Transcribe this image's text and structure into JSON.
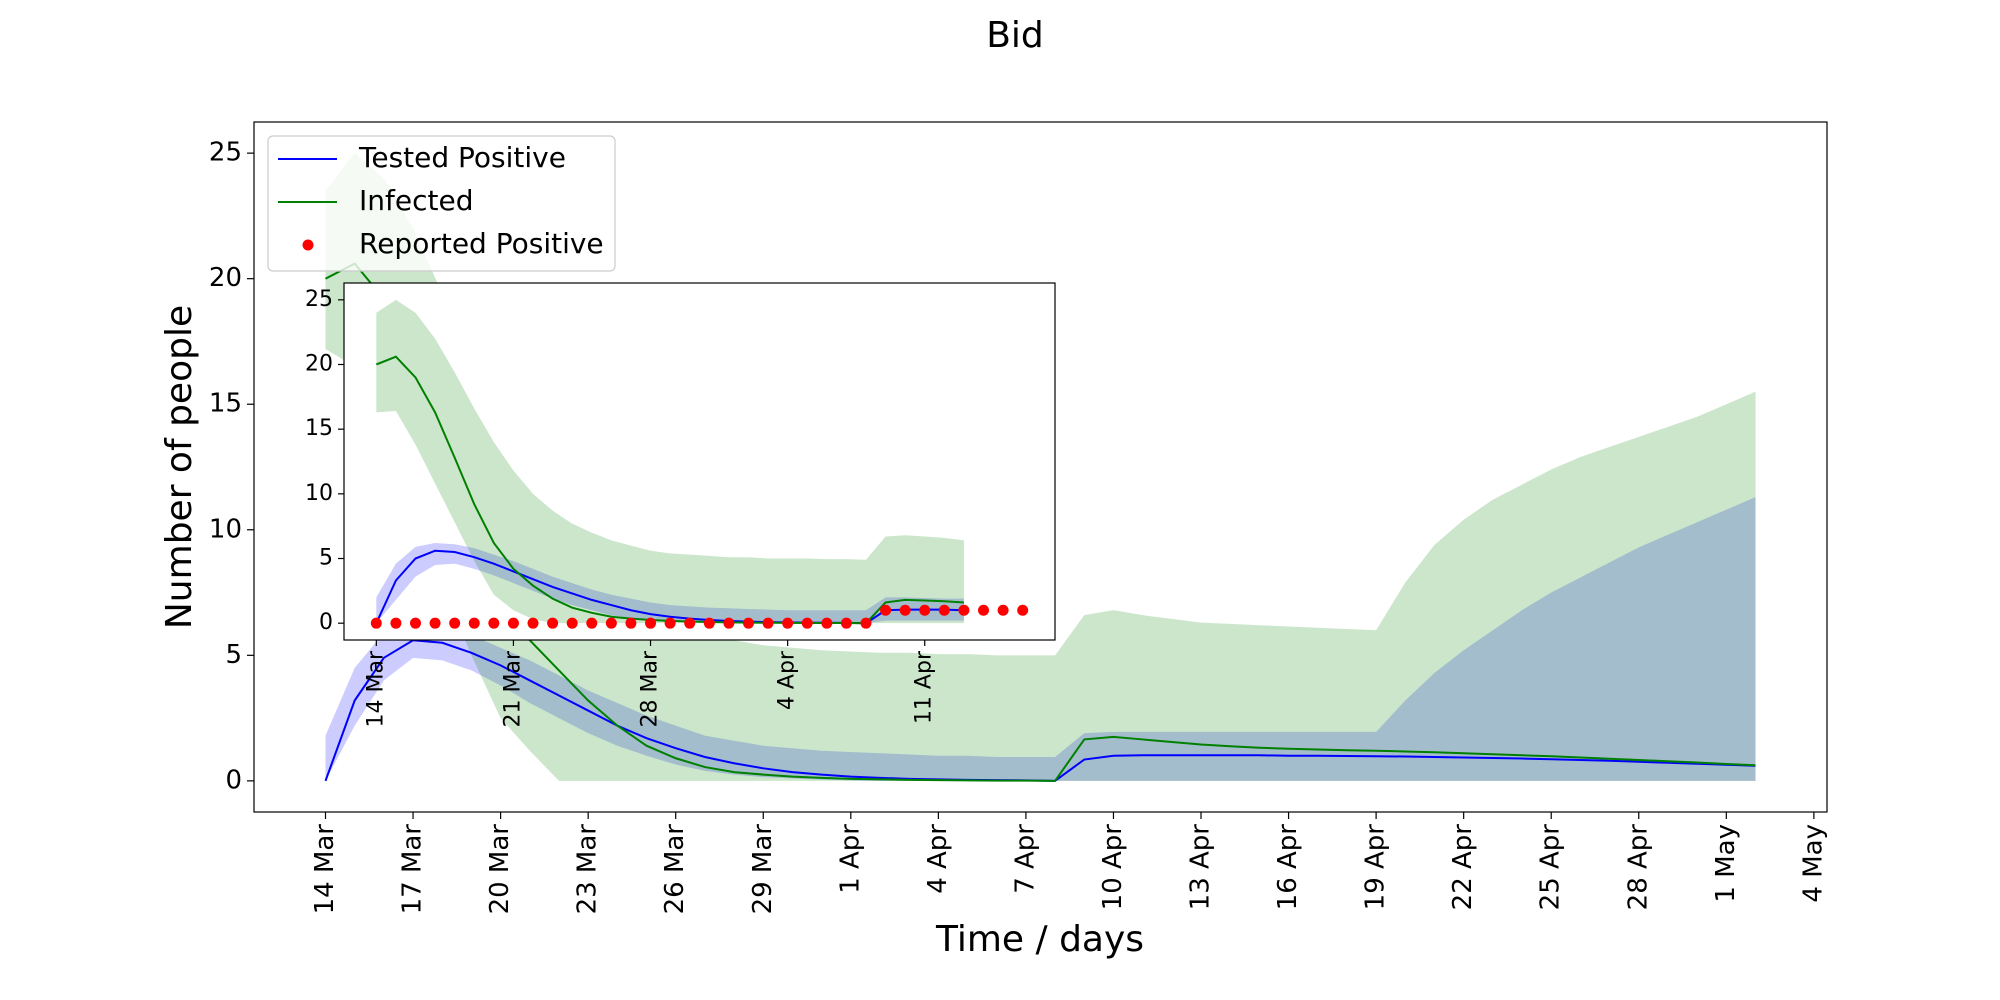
{
  "chart_data": [
    {
      "type": "line",
      "title": "Bid",
      "xlabel": "Time / days",
      "ylabel": "Number of people",
      "legend": "upper left",
      "band_alpha": 0.2,
      "x": [
        "14 Mar",
        "15 Mar",
        "16 Mar",
        "17 Mar",
        "18 Mar",
        "19 Mar",
        "20 Mar",
        "21 Mar",
        "22 Mar",
        "23 Mar",
        "24 Mar",
        "25 Mar",
        "26 Mar",
        "27 Mar",
        "28 Mar",
        "29 Mar",
        "30 Mar",
        "31 Mar",
        "1 Apr",
        "2 Apr",
        "3 Apr",
        "4 Apr",
        "5 Apr",
        "6 Apr",
        "7 Apr",
        "8 Apr",
        "9 Apr",
        "10 Apr",
        "11 Apr",
        "12 Apr",
        "13 Apr",
        "14 Apr",
        "15 Apr",
        "16 Apr",
        "17 Apr",
        "18 Apr",
        "19 Apr",
        "20 Apr",
        "21 Apr",
        "22 Apr",
        "23 Apr",
        "24 Apr",
        "25 Apr",
        "26 Apr",
        "27 Apr",
        "28 Apr",
        "29 Apr",
        "30 Apr",
        "1 May",
        "2 May"
      ],
      "xticks": [
        "14 Mar",
        "17 Mar",
        "20 Mar",
        "23 Mar",
        "26 Mar",
        "29 Mar",
        "1 Apr",
        "4 Apr",
        "7 Apr",
        "10 Apr",
        "13 Apr",
        "16 Apr",
        "19 Apr",
        "22 Apr",
        "25 Apr",
        "28 Apr",
        "1 May",
        "4 May"
      ],
      "ylim": [
        -1.24,
        26.24
      ],
      "yticks": [
        0,
        5,
        10,
        15,
        20,
        25
      ],
      "series": [
        {
          "name": "Tested Positive",
          "color": "blue",
          "values": [
            0,
            3.2,
            4.9,
            5.6,
            5.5,
            5.1,
            4.6,
            4.0,
            3.4,
            2.8,
            2.2,
            1.7,
            1.3,
            0.95,
            0.7,
            0.5,
            0.35,
            0.25,
            0.17,
            0.12,
            0.08,
            0.06,
            0.04,
            0.03,
            0.02,
            0,
            0.85,
            1.0,
            1.02,
            1.02,
            1.02,
            1.02,
            1.02,
            1.0,
            1.0,
            0.99,
            0.98,
            0.97,
            0.95,
            0.93,
            0.91,
            0.89,
            0.86,
            0.83,
            0.8,
            0.76,
            0.72,
            0.68,
            0.64,
            0.6
          ],
          "upper": [
            1.8,
            4.5,
            5.9,
            6.2,
            6.1,
            5.8,
            5.3,
            4.8,
            4.2,
            3.6,
            3.1,
            2.6,
            2.2,
            1.8,
            1.6,
            1.4,
            1.3,
            1.2,
            1.15,
            1.1,
            1.05,
            1.0,
            1.0,
            0.95,
            0.95,
            0.95,
            1.9,
            1.95,
            1.95,
            1.95,
            1.95,
            1.95,
            1.95,
            1.95,
            1.95,
            1.95,
            1.95,
            3.2,
            4.3,
            5.2,
            6.0,
            6.8,
            7.5,
            8.1,
            8.7,
            9.3,
            9.8,
            10.3,
            10.8,
            11.3
          ],
          "lower": [
            0,
            2.2,
            4.0,
            4.9,
            4.8,
            4.4,
            3.8,
            3.1,
            2.5,
            1.9,
            1.4,
            1.0,
            0.65,
            0.4,
            0.25,
            0.15,
            0.1,
            0.05,
            0.02,
            0,
            0,
            0,
            0,
            0,
            0,
            0,
            0,
            0,
            0,
            0,
            0,
            0,
            0,
            0,
            0,
            0,
            0,
            0,
            0,
            0,
            0,
            0,
            0,
            0,
            0,
            0,
            0,
            0,
            0,
            0
          ]
        },
        {
          "name": "Infected",
          "color": "green",
          "values": [
            20,
            20.6,
            19.2,
            16.5,
            13,
            9.8,
            7.2,
            5.6,
            4.4,
            3.2,
            2.2,
            1.4,
            0.9,
            0.55,
            0.35,
            0.25,
            0.17,
            0.12,
            0.08,
            0.06,
            0.04,
            0.03,
            0.02,
            0.01,
            0.01,
            0,
            1.65,
            1.75,
            1.65,
            1.55,
            1.45,
            1.38,
            1.32,
            1.28,
            1.25,
            1.22,
            1.2,
            1.17,
            1.14,
            1.1,
            1.06,
            1.02,
            0.98,
            0.93,
            0.88,
            0.83,
            0.78,
            0.73,
            0.67,
            0.62
          ],
          "upper": [
            23.5,
            25,
            24,
            22,
            19.4,
            16.6,
            14,
            11.8,
            10,
            8.6,
            7.6,
            6.9,
            6.3,
            5.9,
            5.6,
            5.4,
            5.3,
            5.2,
            5.15,
            5.1,
            5.1,
            5.05,
            5.05,
            5.0,
            5.0,
            5.0,
            6.6,
            6.8,
            6.6,
            6.45,
            6.3,
            6.25,
            6.2,
            6.15,
            6.1,
            6.05,
            6.0,
            7.9,
            9.4,
            10.4,
            11.2,
            11.8,
            12.4,
            12.9,
            13.3,
            13.7,
            14.1,
            14.5,
            15.0,
            15.5
          ],
          "lower": [
            17.2,
            16.5,
            13.8,
            10.8,
            7.8,
            5.0,
            2.5,
            1.2,
            0,
            0,
            0,
            0,
            0,
            0,
            0,
            0,
            0,
            0,
            0,
            0,
            0,
            0,
            0,
            0,
            0,
            0,
            0,
            0,
            0,
            0,
            0,
            0,
            0,
            0,
            0,
            0,
            0,
            0,
            0,
            0,
            0,
            0,
            0,
            0,
            0,
            0,
            0,
            0,
            0,
            0
          ]
        },
        {
          "name": "Reported Positive",
          "color": "red",
          "type": "scatter"
        }
      ]
    },
    {
      "type": "line",
      "band_alpha": 0.2,
      "x": [
        "14 Mar",
        "15 Mar",
        "16 Mar",
        "17 Mar",
        "18 Mar",
        "19 Mar",
        "20 Mar",
        "21 Mar",
        "22 Mar",
        "23 Mar",
        "24 Mar",
        "25 Mar",
        "26 Mar",
        "27 Mar",
        "28 Mar",
        "29 Mar",
        "30 Mar",
        "31 Mar",
        "1 Apr",
        "2 Apr",
        "3 Apr",
        "4 Apr",
        "5 Apr",
        "6 Apr",
        "7 Apr",
        "8 Apr",
        "9 Apr",
        "10 Apr",
        "11 Apr",
        "12 Apr",
        "13 Apr",
        "14 Apr",
        "15 Apr",
        "16 Apr"
      ],
      "xticks": [
        "14 Mar",
        "21 Mar",
        "28 Mar",
        "4 Apr",
        "11 Apr"
      ],
      "ylim": [
        -1.3,
        26.3
      ],
      "yticks": [
        0,
        5,
        10,
        15,
        20,
        25
      ],
      "series": [
        {
          "color": "blue",
          "values": [
            0,
            3.3,
            5.0,
            5.6,
            5.5,
            5.1,
            4.6,
            4.0,
            3.4,
            2.8,
            2.3,
            1.8,
            1.4,
            1.0,
            0.7,
            0.5,
            0.35,
            0.25,
            0.17,
            0.12,
            0.08,
            0.06,
            0.04,
            0.03,
            0.02,
            0,
            1.0,
            1.05,
            1.05,
            1.05,
            1.0,
            null,
            null,
            null
          ],
          "upper": [
            2.0,
            4.6,
            5.9,
            6.2,
            6.1,
            5.8,
            5.3,
            4.8,
            4.2,
            3.6,
            3.1,
            2.6,
            2.2,
            1.9,
            1.6,
            1.4,
            1.3,
            1.2,
            1.15,
            1.1,
            1.05,
            1.0,
            1.0,
            1.0,
            1.0,
            1.0,
            2.0,
            2.0,
            1.95,
            1.9,
            1.9,
            null,
            null,
            null
          ],
          "lower": [
            0,
            1.8,
            3.6,
            4.5,
            4.6,
            4.2,
            3.7,
            3.1,
            2.5,
            1.9,
            1.4,
            1.0,
            0.6,
            0.4,
            0.25,
            0.15,
            0.1,
            0.05,
            0.02,
            0,
            0,
            0,
            0,
            0,
            0,
            0,
            0.2,
            0.2,
            0.2,
            0.2,
            0.2,
            null,
            null,
            null
          ]
        },
        {
          "color": "green",
          "values": [
            20,
            20.6,
            19.0,
            16.3,
            12.8,
            9.2,
            6.2,
            4.2,
            2.9,
            1.9,
            1.2,
            0.8,
            0.5,
            0.35,
            0.25,
            0.18,
            0.13,
            0.09,
            0.06,
            0.04,
            0.03,
            0.02,
            0.01,
            0.01,
            0.01,
            0,
            1.6,
            1.8,
            1.75,
            1.7,
            1.6,
            null,
            null,
            null
          ],
          "upper": [
            24,
            25,
            24,
            22,
            19.4,
            16.6,
            14,
            11.8,
            10,
            8.7,
            7.7,
            7.0,
            6.4,
            6.0,
            5.6,
            5.4,
            5.3,
            5.2,
            5.1,
            5.1,
            5.0,
            5.0,
            5.0,
            4.95,
            4.95,
            4.9,
            6.7,
            6.8,
            6.7,
            6.6,
            6.4,
            null,
            null,
            null
          ],
          "lower": [
            16.3,
            16.4,
            13.8,
            10.8,
            7.8,
            4.8,
            2.2,
            1.0,
            0.3,
            0,
            0,
            0,
            0,
            0,
            0,
            0,
            0,
            0,
            0,
            0,
            0,
            0,
            0,
            0,
            0,
            0,
            0,
            0,
            0,
            0,
            0,
            null,
            null,
            null
          ]
        },
        {
          "color": "red",
          "type": "scatter",
          "values": [
            0,
            0,
            0,
            0,
            0,
            0,
            0,
            0,
            0,
            0,
            0,
            0,
            0,
            0,
            0,
            0,
            0,
            0,
            0,
            0,
            0,
            0,
            0,
            0,
            0,
            0,
            1,
            1,
            1,
            1,
            1,
            1,
            1,
            1
          ]
        }
      ]
    }
  ]
}
